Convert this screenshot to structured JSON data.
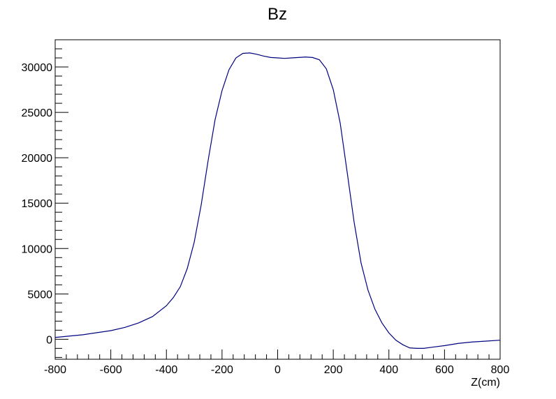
{
  "chart_data": {
    "type": "line",
    "title": "Bz",
    "xlabel": "Z(cm)",
    "ylabel": "",
    "xlim": [
      -800,
      800
    ],
    "ylim": [
      -2200,
      33000
    ],
    "xticks": [
      -800,
      -600,
      -400,
      -200,
      0,
      200,
      400,
      600,
      800
    ],
    "yticks": [
      0,
      5000,
      10000,
      15000,
      20000,
      25000,
      30000
    ],
    "xtick_labels": [
      "-800",
      "-600",
      "-400",
      "-200",
      "0",
      "200",
      "400",
      "600",
      "800"
    ],
    "ytick_labels": [
      "0",
      "5000",
      "10000",
      "15000",
      "20000",
      "25000",
      "30000"
    ],
    "grid": false,
    "legend": "none",
    "line_color": "#00007f",
    "series": [
      {
        "name": "",
        "x": [
          -800,
          -700,
          -600,
          -550,
          -500,
          -450,
          -400,
          -375,
          -350,
          -325,
          -300,
          -275,
          -250,
          -225,
          -200,
          -175,
          -150,
          -125,
          -100,
          -75,
          -50,
          -25,
          0,
          25,
          50,
          75,
          100,
          125,
          150,
          175,
          200,
          225,
          250,
          275,
          300,
          325,
          350,
          375,
          400,
          425,
          450,
          475,
          500,
          525,
          550,
          600,
          650,
          700,
          750,
          800
        ],
        "y": [
          200,
          500,
          950,
          1300,
          1800,
          2500,
          3700,
          4600,
          5800,
          7800,
          10700,
          14800,
          19700,
          24200,
          27400,
          29700,
          31000,
          31500,
          31550,
          31400,
          31200,
          31050,
          31000,
          30950,
          31000,
          31050,
          31100,
          31050,
          30800,
          29800,
          27500,
          23800,
          18400,
          12900,
          8400,
          5400,
          3300,
          1800,
          700,
          -100,
          -600,
          -950,
          -1000,
          -1000,
          -900,
          -700,
          -450,
          -300,
          -200,
          -100
        ]
      }
    ]
  }
}
